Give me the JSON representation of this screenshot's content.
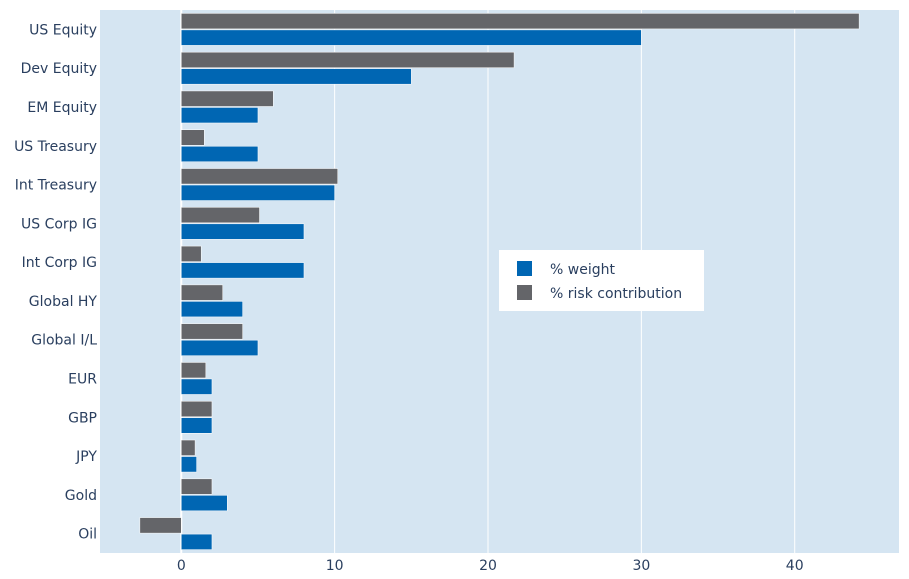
{
  "chart_data": {
    "type": "bar",
    "orientation": "horizontal",
    "categories": [
      "US Equity",
      "Dev Equity",
      "EM Equity",
      "US Treasury",
      "Int Treasury",
      "US Corp IG",
      "Int Corp IG",
      "Global HY",
      "Global I/L",
      "EUR",
      "GBP",
      "JPY",
      "Gold",
      "Oil"
    ],
    "series": [
      {
        "name": "% weight",
        "color": "#0066b3",
        "values": [
          30,
          15,
          5,
          5,
          10,
          8,
          8,
          4,
          5,
          2,
          2,
          1,
          3,
          2
        ]
      },
      {
        "name": "% risk contribution",
        "color": "#646569",
        "values": [
          44.2,
          21.7,
          6,
          1.5,
          10.2,
          5.1,
          1.3,
          2.7,
          4,
          1.6,
          2,
          0.9,
          2,
          -2.7
        ]
      }
    ],
    "x_ticks": [
      0,
      10,
      20,
      30,
      40
    ],
    "xlim": [
      -5.3,
      46.8
    ],
    "grid": true,
    "legend_position": "middle-right",
    "plot_background": "#d5e5f2"
  }
}
